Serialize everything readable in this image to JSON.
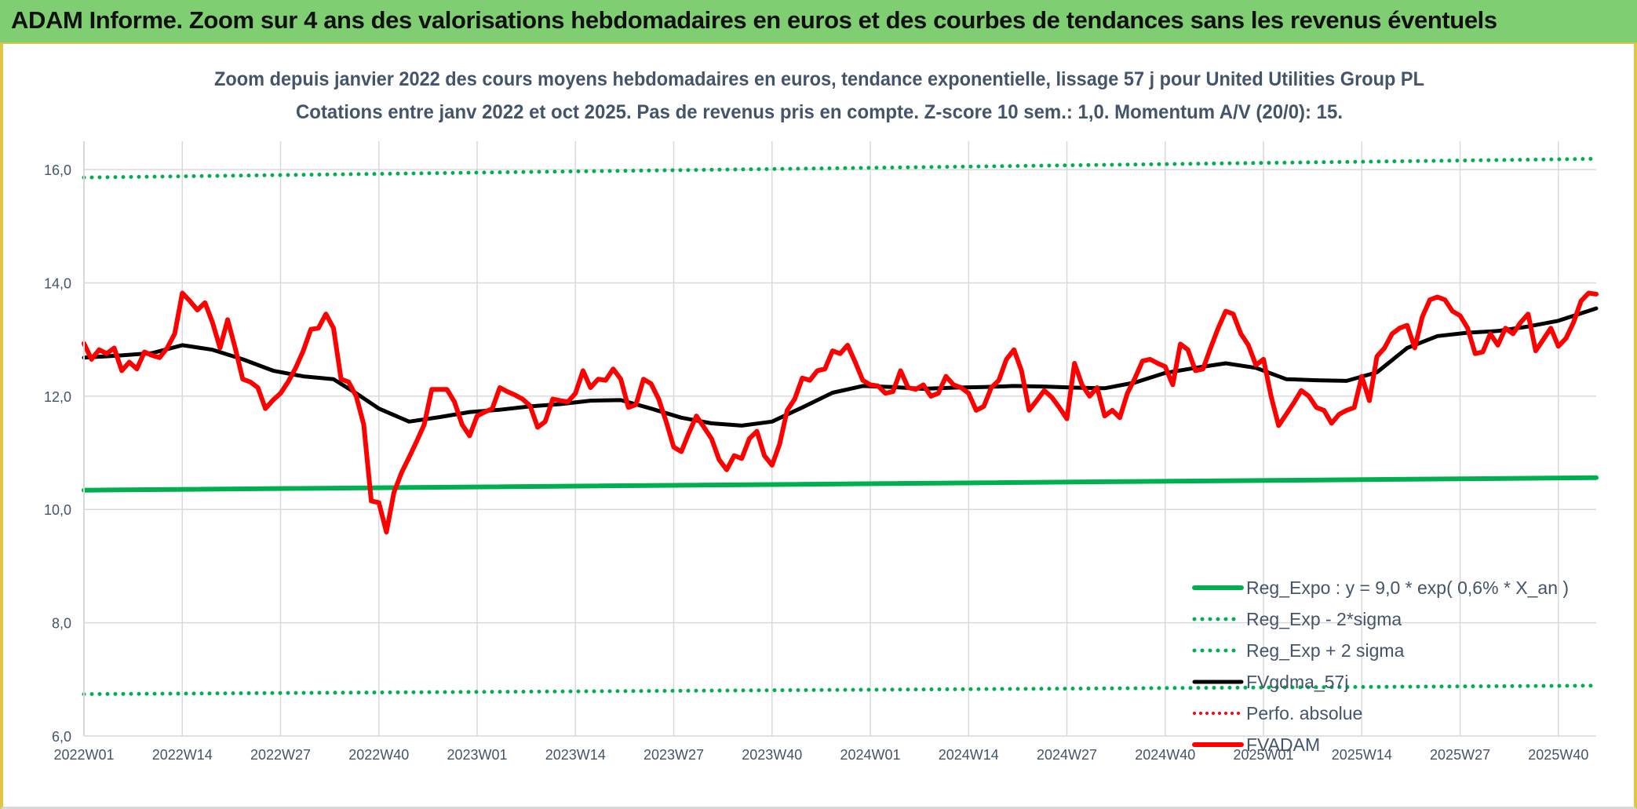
{
  "banner": {
    "title": "ADAM Informe. Zoom sur 4 ans des valorisations hebdomadaires en euros et des courbes de tendances sans les revenus éventuels"
  },
  "colors": {
    "banner_bg": "#7fce72",
    "frame_border": "#e2c447",
    "green": "#00b050",
    "black": "#000000",
    "red": "#ff0000",
    "text": "#44546a",
    "grid": "#d9d9d9"
  },
  "chart_data": {
    "type": "line",
    "title": "Zoom depuis janvier 2022 des cours moyens hebdomadaires en euros, tendance exponentielle, lissage 57 j pour United Utilities Group PL",
    "subtitle": "Cotations entre janv 2022 et oct 2025. Pas de revenus pris en compte. Z-score 10 sem.: 1,0. Momentum A/V (20/0): 15.",
    "xlabel": "",
    "ylabel": "",
    "ylim": [
      6,
      16.5
    ],
    "y_ticks": [
      6,
      8,
      10,
      12,
      14,
      16
    ],
    "y_tick_labels": [
      "6,0",
      "8,0",
      "10,0",
      "12,0",
      "14,0",
      "16,0"
    ],
    "x_tick_labels": [
      "2022W01",
      "2022W14",
      "2022W27",
      "2022W40",
      "2023W01",
      "2023W14",
      "2023W27",
      "2023W40",
      "2024W01",
      "2024W14",
      "2024W27",
      "2024W40",
      "2025W01",
      "2025W14",
      "2025W27",
      "2025W40"
    ],
    "x_tick_positions": [
      1,
      14,
      27,
      40,
      53,
      66,
      79,
      92,
      105,
      118,
      131,
      144,
      157,
      170,
      183,
      196
    ],
    "x_range": [
      1,
      201
    ],
    "legend_position": "right",
    "series": [
      {
        "name": "Reg_Expo : y = 9,0 * exp( 0,6% *  X_an )",
        "style": "solid-green",
        "x": [
          1,
          201
        ],
        "values": [
          10.34,
          10.56
        ]
      },
      {
        "name": "Reg_Exp - 2*sigma",
        "style": "dotted-green",
        "x": [
          1,
          201
        ],
        "values": [
          6.74,
          6.89
        ]
      },
      {
        "name": "Reg_Exp + 2 sigma",
        "style": "dotted-green",
        "x": [
          1,
          201
        ],
        "values": [
          15.86,
          16.19
        ]
      },
      {
        "name": "FVgdma_57j",
        "style": "solid-black",
        "x": [
          1,
          6,
          10,
          14,
          18,
          22,
          26,
          30,
          34,
          37,
          40,
          44,
          48,
          52,
          56,
          60,
          64,
          68,
          72,
          76,
          80,
          84,
          88,
          92,
          96,
          100,
          104,
          108,
          112,
          116,
          120,
          124,
          128,
          132,
          136,
          140,
          144,
          148,
          152,
          156,
          160,
          164,
          168,
          172,
          176,
          180,
          184,
          188,
          192,
          196,
          201
        ],
        "values": [
          12.68,
          12.72,
          12.76,
          12.9,
          12.82,
          12.65,
          12.45,
          12.35,
          12.3,
          12.05,
          11.78,
          11.55,
          11.63,
          11.72,
          11.76,
          11.82,
          11.86,
          11.92,
          11.93,
          11.78,
          11.62,
          11.52,
          11.48,
          11.55,
          11.8,
          12.06,
          12.18,
          12.16,
          12.13,
          12.15,
          12.16,
          12.18,
          12.17,
          12.15,
          12.14,
          12.24,
          12.41,
          12.5,
          12.58,
          12.5,
          12.3,
          12.28,
          12.27,
          12.42,
          12.85,
          13.06,
          13.12,
          13.15,
          13.23,
          13.33,
          13.55
        ]
      },
      {
        "name": "Perfo. absolue",
        "style": "dotted-red",
        "x": [],
        "values": []
      },
      {
        "name": "FVADAM",
        "style": "solid-red",
        "x": [
          1,
          2,
          3,
          4,
          5,
          6,
          7,
          8,
          9,
          10,
          11,
          12,
          13,
          14,
          15,
          16,
          17,
          18,
          19,
          20,
          21,
          22,
          23,
          24,
          25,
          26,
          27,
          28,
          29,
          30,
          31,
          32,
          33,
          34,
          35,
          36,
          37,
          38,
          39,
          40,
          41,
          42,
          43,
          44,
          45,
          46,
          47,
          48,
          49,
          50,
          51,
          52,
          53,
          54,
          55,
          56,
          57,
          58,
          59,
          60,
          61,
          62,
          63,
          64,
          65,
          66,
          67,
          68,
          69,
          70,
          71,
          72,
          73,
          74,
          75,
          76,
          77,
          78,
          79,
          80,
          81,
          82,
          83,
          84,
          85,
          86,
          87,
          88,
          89,
          90,
          91,
          92,
          93,
          94,
          95,
          96,
          97,
          98,
          99,
          100,
          101,
          102,
          103,
          104,
          105,
          106,
          107,
          108,
          109,
          110,
          111,
          112,
          113,
          114,
          115,
          116,
          117,
          118,
          119,
          120,
          121,
          122,
          123,
          124,
          125,
          126,
          127,
          128,
          129,
          130,
          131,
          132,
          133,
          134,
          135,
          136,
          137,
          138,
          139,
          140,
          141,
          142,
          143,
          144,
          145,
          146,
          147,
          148,
          149,
          150,
          151,
          152,
          153,
          154,
          155,
          156,
          157,
          158,
          159,
          160,
          161,
          162,
          163,
          164,
          165,
          166,
          167,
          168,
          169,
          170,
          171,
          172,
          173,
          174,
          175,
          176,
          177,
          178,
          179,
          180,
          181,
          182,
          183,
          184,
          185,
          186,
          187,
          188,
          189,
          190,
          191,
          192,
          193,
          194,
          195,
          196,
          197,
          198,
          199,
          200,
          201
        ],
        "values": [
          12.93,
          12.65,
          12.82,
          12.75,
          12.85,
          12.45,
          12.6,
          12.48,
          12.78,
          12.72,
          12.68,
          12.85,
          13.1,
          13.82,
          13.68,
          13.52,
          13.65,
          13.3,
          12.85,
          13.35,
          12.85,
          12.3,
          12.25,
          12.15,
          11.78,
          11.93,
          12.05,
          12.25,
          12.5,
          12.8,
          13.18,
          13.2,
          13.45,
          13.2,
          12.3,
          12.25,
          12.0,
          11.5,
          10.15,
          10.12,
          9.6,
          10.3,
          10.65,
          10.92,
          11.2,
          11.5,
          12.12,
          12.12,
          12.12,
          11.9,
          11.5,
          11.3,
          11.65,
          11.72,
          11.78,
          12.15,
          12.08,
          12.02,
          11.95,
          11.83,
          11.45,
          11.55,
          11.95,
          11.92,
          11.9,
          12.05,
          12.45,
          12.15,
          12.3,
          12.28,
          12.48,
          12.3,
          11.8,
          11.85,
          12.3,
          12.22,
          11.95,
          11.55,
          11.1,
          11.02,
          11.35,
          11.65,
          11.45,
          11.25,
          10.88,
          10.7,
          10.95,
          10.9,
          11.25,
          11.38,
          10.95,
          10.78,
          11.15,
          11.75,
          11.95,
          12.32,
          12.28,
          12.45,
          12.48,
          12.8,
          12.75,
          12.9,
          12.6,
          12.28,
          12.2,
          12.18,
          12.05,
          12.08,
          12.45,
          12.15,
          12.12,
          12.2,
          12.0,
          12.05,
          12.35,
          12.2,
          12.15,
          12.05,
          11.75,
          11.82,
          12.15,
          12.28,
          12.65,
          12.82,
          12.45,
          11.75,
          11.92,
          12.1,
          11.98,
          11.8,
          11.6,
          12.58,
          12.2,
          12.0,
          12.15,
          11.65,
          11.75,
          11.62,
          12.05,
          12.32,
          12.62,
          12.65,
          12.58,
          12.52,
          12.2,
          12.92,
          12.82,
          12.45,
          12.48,
          12.85,
          13.2,
          13.5,
          13.45,
          13.1,
          12.9,
          12.55,
          12.65,
          12.0,
          11.48,
          11.68,
          11.88,
          12.1,
          12.0,
          11.8,
          11.75,
          11.52,
          11.68,
          11.75,
          11.8,
          12.35,
          11.92,
          12.7,
          12.85,
          13.1,
          13.2,
          13.25,
          12.85,
          13.4,
          13.7,
          13.75,
          13.7,
          13.5,
          13.42,
          13.2,
          12.75,
          12.78,
          13.1,
          12.9,
          13.2,
          13.1,
          13.3,
          13.45,
          12.8,
          13.0,
          13.2,
          12.88,
          13.02,
          13.3,
          13.68,
          13.82,
          13.8
        ]
      }
    ]
  }
}
